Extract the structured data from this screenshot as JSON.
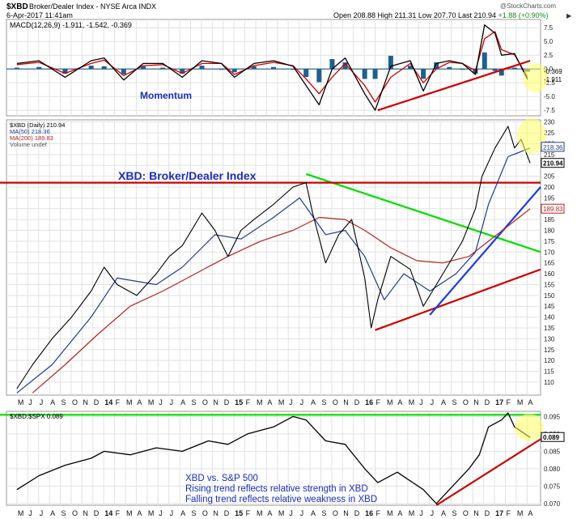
{
  "header": {
    "symbol": "$XBD",
    "title": "Broker/Dealer Index - NYSE Arca INDX",
    "date": "6-Apr-2017 11:41am",
    "watermark": "@StockCharts.com",
    "ohlc": {
      "open_label": "Open",
      "open": "208.88",
      "high_label": "High",
      "high": "211.31",
      "low_label": "Low",
      "low": "207.70",
      "last_label": "Last",
      "last": "210.94",
      "change": "+1.88 (+0.90%)"
    },
    "arrows": "▶"
  },
  "chart_data": [
    {
      "type": "line",
      "panel": "macd",
      "legend": "MACD(12,26,9) -1.911, -1.542, -0.369",
      "annotation": "Momentum",
      "y_ticks": [
        "7.5",
        "5.0",
        "2.5",
        "0.0",
        "-2.5",
        "-5.0",
        "-7.5"
      ],
      "ylim": [
        -8.5,
        9
      ],
      "last_value_tags": [
        "-0.369",
        "-1.911"
      ],
      "series": [
        {
          "name": "MACD(12,26,9)",
          "color": "#000000",
          "x": [
            2013.33,
            2013.5,
            2013.7,
            2013.9,
            2014.0,
            2014.15,
            2014.3,
            2014.45,
            2014.6,
            2014.75,
            2014.9,
            2015.0,
            2015.15,
            2015.3,
            2015.45,
            2015.55,
            2015.65,
            2015.75,
            2015.85,
            2016.0,
            2016.08,
            2016.2,
            2016.35,
            2016.45,
            2016.55,
            2016.65,
            2016.75,
            2016.85,
            2016.92,
            2017.0,
            2017.05,
            2017.15,
            2017.25
          ],
          "y": [
            1.0,
            1.5,
            -1.5,
            1.5,
            2.0,
            -2.0,
            1.0,
            1.0,
            -1.5,
            1.5,
            1.0,
            -1.5,
            1.0,
            1.5,
            0.5,
            -3.0,
            -6.5,
            0.0,
            2.0,
            -4.5,
            -7.5,
            0.5,
            1.5,
            -4.0,
            1.0,
            1.5,
            1.0,
            -1.0,
            8.0,
            6.5,
            2.5,
            2.8,
            -1.9
          ]
        },
        {
          "name": "Signal",
          "color": "#cc0000",
          "x": [
            2013.33,
            2013.5,
            2013.7,
            2013.9,
            2014.0,
            2014.15,
            2014.3,
            2014.45,
            2014.6,
            2014.75,
            2014.9,
            2015.0,
            2015.15,
            2015.3,
            2015.45,
            2015.55,
            2015.65,
            2015.75,
            2015.85,
            2016.0,
            2016.08,
            2016.2,
            2016.35,
            2016.45,
            2016.55,
            2016.65,
            2016.75,
            2016.85,
            2016.92,
            2017.0,
            2017.05,
            2017.15,
            2017.25
          ],
          "y": [
            0.8,
            1.2,
            -0.8,
            1.0,
            1.6,
            -1.2,
            0.6,
            0.8,
            -0.8,
            1.0,
            1.0,
            -1.0,
            0.6,
            1.2,
            0.6,
            -1.8,
            -4.5,
            -1.5,
            1.0,
            -3.0,
            -6.0,
            -1.5,
            1.0,
            -2.5,
            0.0,
            1.2,
            1.0,
            -0.3,
            5.5,
            6.8,
            3.5,
            2.6,
            -1.5
          ]
        }
      ]
    },
    {
      "type": "line",
      "panel": "price",
      "title": "XBD: Broker/Dealer Index",
      "legend": [
        "$XBD (Daily) 210.94",
        "MA(50) 218.36",
        "MA(200) 189.83",
        "Volume undef"
      ],
      "y_ticks": [
        "230",
        "225",
        "220",
        "215",
        "210",
        "205",
        "200",
        "195",
        "190",
        "185",
        "180",
        "175",
        "170",
        "165",
        "160",
        "155",
        "150",
        "145",
        "140",
        "135",
        "130",
        "125",
        "120",
        "115",
        "110"
      ],
      "ylim": [
        104,
        231
      ],
      "last_value_tags": [
        "218.36",
        "210.94",
        "189.83"
      ],
      "series": [
        {
          "name": "$XBD (Daily)",
          "color": "#000000",
          "x": [
            2013.33,
            2013.45,
            2013.6,
            2013.75,
            2013.9,
            2014.0,
            2014.1,
            2014.25,
            2014.4,
            2014.5,
            2014.6,
            2014.75,
            2014.85,
            2014.95,
            2015.05,
            2015.15,
            2015.3,
            2015.45,
            2015.55,
            2015.6,
            2015.7,
            2015.8,
            2015.9,
            2016.0,
            2016.05,
            2016.1,
            2016.2,
            2016.35,
            2016.45,
            2016.5,
            2016.6,
            2016.75,
            2016.85,
            2016.9,
            2017.0,
            2017.1,
            2017.15,
            2017.2,
            2017.27
          ],
          "y": [
            107,
            118,
            130,
            140,
            152,
            163,
            155,
            150,
            160,
            168,
            173,
            188,
            180,
            168,
            180,
            185,
            192,
            200,
            202,
            188,
            165,
            178,
            185,
            158,
            135,
            148,
            168,
            162,
            145,
            150,
            160,
            175,
            190,
            205,
            218,
            228,
            218,
            222,
            211
          ]
        },
        {
          "name": "MA(50)",
          "color": "#1f3d8c",
          "x": [
            2013.33,
            2013.6,
            2013.9,
            2014.1,
            2014.4,
            2014.6,
            2014.85,
            2015.05,
            2015.3,
            2015.5,
            2015.7,
            2015.85,
            2016.0,
            2016.15,
            2016.3,
            2016.5,
            2016.7,
            2016.85,
            2016.95,
            2017.1,
            2017.27
          ],
          "y": [
            105,
            118,
            140,
            158,
            155,
            163,
            178,
            176,
            186,
            195,
            178,
            180,
            168,
            148,
            160,
            152,
            160,
            170,
            192,
            214,
            218
          ]
        },
        {
          "name": "MA(200)",
          "color": "#b22222",
          "x": [
            2013.45,
            2013.7,
            2013.95,
            2014.2,
            2014.45,
            2014.7,
            2014.95,
            2015.2,
            2015.45,
            2015.65,
            2015.85,
            2016.0,
            2016.2,
            2016.4,
            2016.6,
            2016.8,
            2016.95,
            2017.1,
            2017.27
          ],
          "y": [
            105,
            118,
            132,
            145,
            152,
            160,
            168,
            175,
            180,
            186,
            185,
            180,
            172,
            166,
            165,
            168,
            175,
            182,
            190
          ]
        }
      ],
      "trendlines": [
        {
          "color": "#00dd00",
          "from": [
            2015.55,
            206
          ],
          "to": [
            2017.35,
            170
          ]
        },
        {
          "color": "#cc0000",
          "from": [
            2016.08,
            134
          ],
          "to": [
            2017.35,
            162
          ]
        },
        {
          "color": "#1f3dd6",
          "from": [
            2016.5,
            141
          ],
          "to": [
            2017.35,
            200
          ]
        },
        {
          "color": "#cc0000",
          "from": [
            2013.0,
            202
          ],
          "to": [
            2017.35,
            202
          ]
        }
      ]
    },
    {
      "type": "line",
      "panel": "ratio",
      "legend": "$XBD:$SPX 0.089",
      "y_ticks": [
        "0.095",
        "0.090",
        "0.085",
        "0.080",
        "0.075",
        "0.070"
      ],
      "ylim": [
        0.0695,
        0.0965
      ],
      "last_value_tags": [
        "0.089"
      ],
      "series": [
        {
          "name": "$XBD:$SPX",
          "color": "#000000",
          "x": [
            2013.33,
            2013.5,
            2013.7,
            2013.9,
            2014.0,
            2014.2,
            2014.4,
            2014.6,
            2014.8,
            2014.95,
            2015.1,
            2015.3,
            2015.45,
            2015.55,
            2015.7,
            2015.85,
            2016.0,
            2016.1,
            2016.25,
            2016.45,
            2016.55,
            2016.7,
            2016.8,
            2016.88,
            2016.95,
            2017.05,
            2017.1,
            2017.15,
            2017.27
          ],
          "y": [
            0.074,
            0.078,
            0.081,
            0.083,
            0.085,
            0.084,
            0.086,
            0.085,
            0.088,
            0.087,
            0.09,
            0.092,
            0.095,
            0.094,
            0.088,
            0.087,
            0.08,
            0.076,
            0.079,
            0.074,
            0.07,
            0.076,
            0.08,
            0.084,
            0.092,
            0.094,
            0.096,
            0.092,
            0.089
          ]
        }
      ],
      "trendlines": [
        {
          "color": "#00dd00",
          "from": [
            2013.0,
            0.0955
          ],
          "to": [
            2017.35,
            0.0955
          ]
        },
        {
          "color": "#cc0000",
          "from": [
            2016.55,
            0.0695
          ],
          "to": [
            2017.35,
            0.0885
          ]
        }
      ],
      "annotations": [
        "XBD vs. S&P 500",
        "Rising trend reflects relative strength in XBD",
        "Falling trend reflects relative weakness in XBD"
      ]
    }
  ],
  "x_axis": {
    "labels": [
      "M",
      "J",
      "J",
      "A",
      "S",
      "O",
      "N",
      "D",
      "14",
      "F",
      "M",
      "A",
      "M",
      "J",
      "J",
      "A",
      "S",
      "O",
      "N",
      "D",
      "15",
      "F",
      "M",
      "A",
      "M",
      "J",
      "J",
      "A",
      "S",
      "O",
      "N",
      "D",
      "16",
      "F",
      "M",
      "A",
      "M",
      "J",
      "J",
      "A",
      "S",
      "O",
      "N",
      "D",
      "17",
      "F",
      "M",
      "A"
    ],
    "start": 2013.33,
    "step": 0.08333
  }
}
